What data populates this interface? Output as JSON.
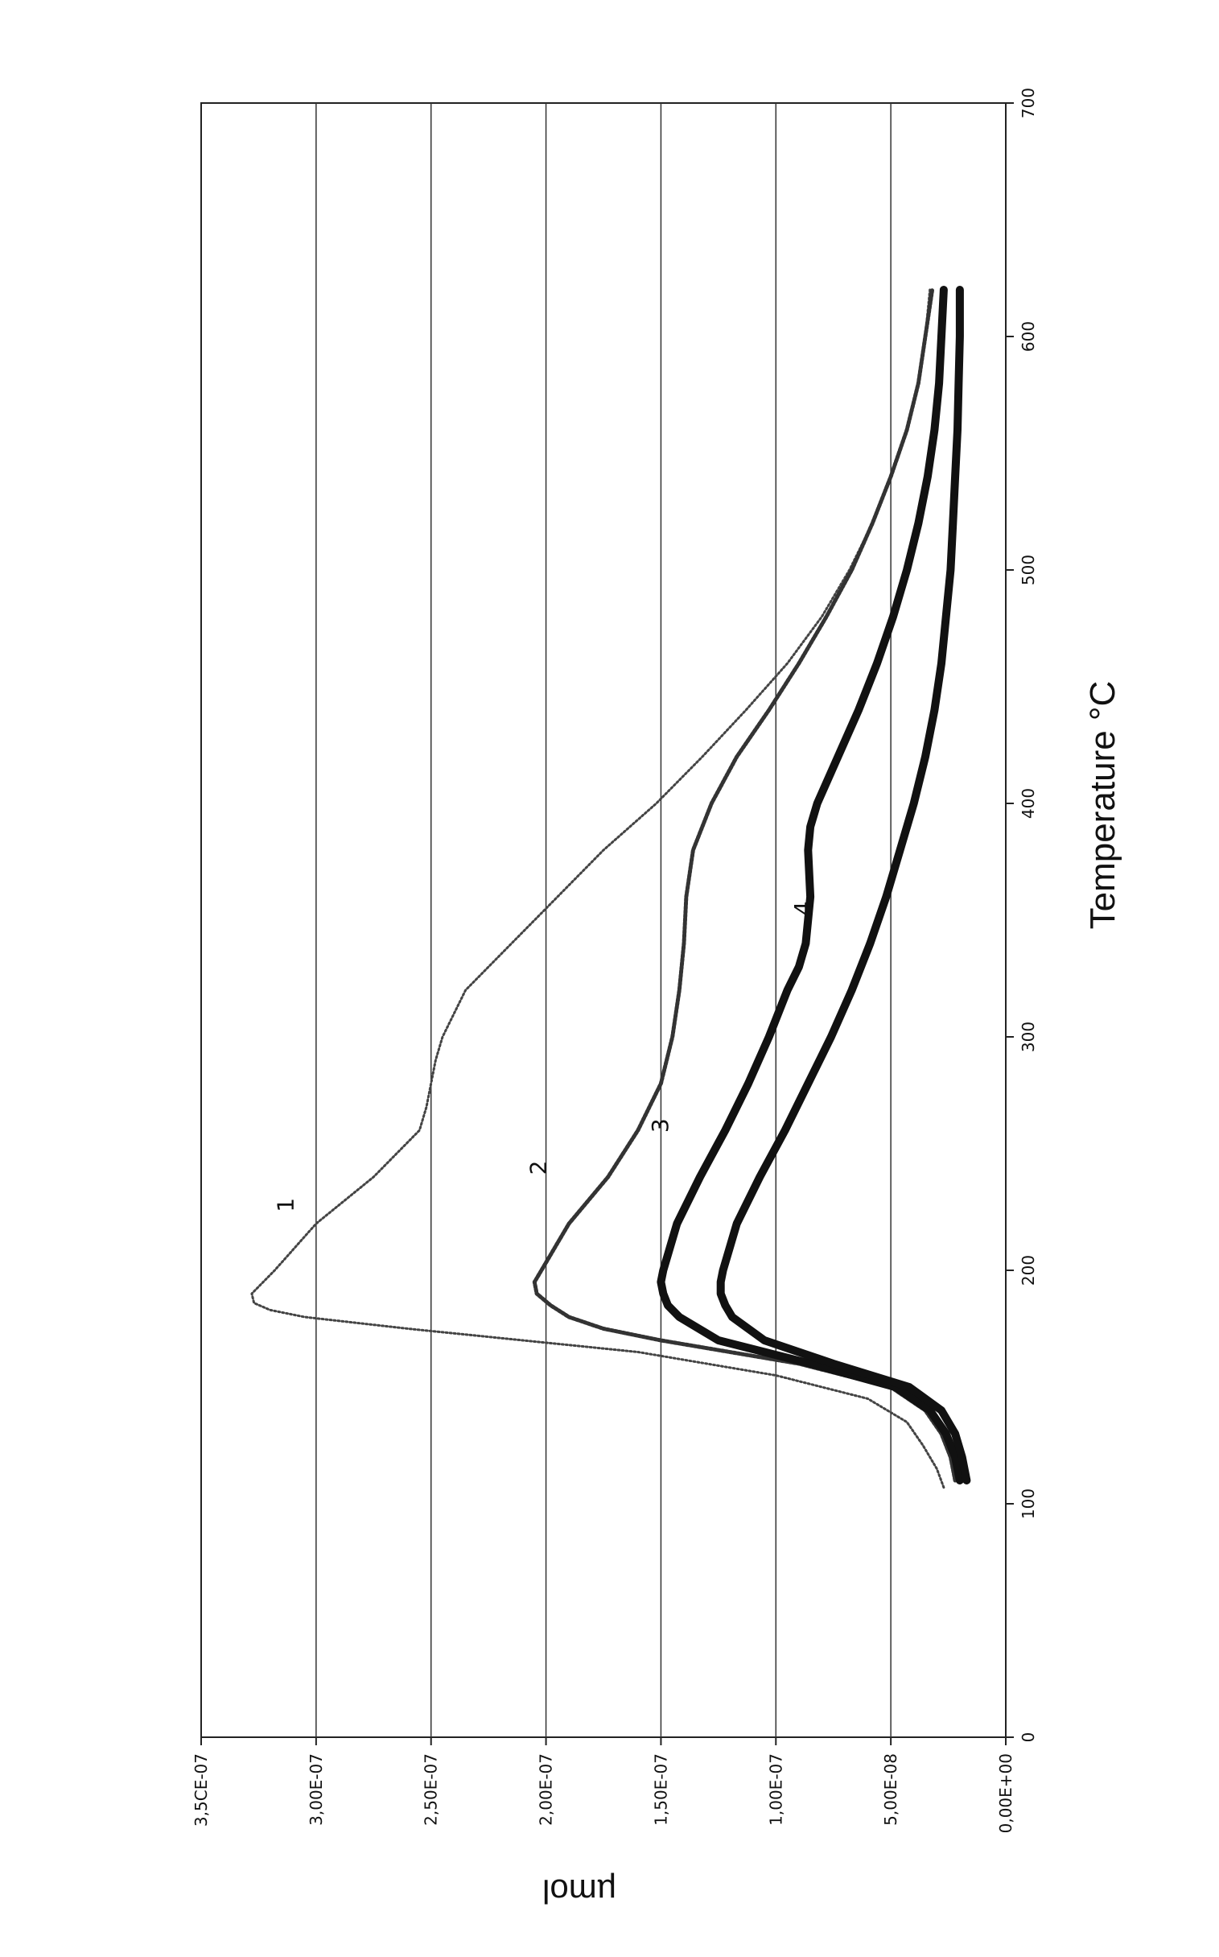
{
  "chart_data": {
    "type": "line",
    "orientation": "rotated-90-clockwise",
    "xlabel": "Temperature  °C",
    "ylabel": "µmol",
    "xlim": [
      0,
      700
    ],
    "ylim": [
      0,
      3.5e-07
    ],
    "x_ticks": [
      "0",
      "100",
      "200",
      "300",
      "400",
      "500",
      "600",
      "700"
    ],
    "y_ticks": [
      "0,00E+00",
      "5,00E-08",
      "1,00E-07",
      "1,50E-07",
      "2,00E-07",
      "2,50E-07",
      "3,00E-07",
      "3,5CE-07"
    ],
    "grid": "horizontal",
    "legend": "none",
    "series": [
      {
        "name": "1",
        "style": "dotted-thin",
        "x": [
          107,
          115,
          125,
          135,
          145,
          155,
          165,
          170,
          175,
          180,
          183,
          186,
          190,
          200,
          220,
          240,
          260,
          270,
          290,
          300,
          320,
          340,
          360,
          380,
          400,
          420,
          440,
          460,
          480,
          500,
          520,
          540,
          560,
          580,
          600,
          620
        ],
        "y": [
          2.7e-08,
          3e-08,
          3.6e-08,
          4.3e-08,
          6e-08,
          1e-07,
          1.6e-07,
          2.1e-07,
          2.6e-07,
          3.05e-07,
          3.2e-07,
          3.27e-07,
          3.28e-07,
          3.18e-07,
          3e-07,
          2.75e-07,
          2.55e-07,
          2.52e-07,
          2.48e-07,
          2.45e-07,
          2.35e-07,
          2.15e-07,
          1.95e-07,
          1.75e-07,
          1.52e-07,
          1.32e-07,
          1.13e-07,
          9.5e-08,
          8e-08,
          6.8e-08,
          5.8e-08,
          5e-08,
          4.3e-08,
          3.8e-08,
          3.5e-08,
          3.3e-08
        ]
      },
      {
        "name": "2",
        "style": "dotted-medium",
        "x": [
          110,
          120,
          130,
          140,
          150,
          160,
          170,
          175,
          180,
          185,
          190,
          195,
          200,
          220,
          240,
          260,
          280,
          300,
          320,
          340,
          360,
          380,
          400,
          420,
          440,
          460,
          480,
          500,
          520,
          540,
          560,
          580,
          600,
          620
        ],
        "y": [
          2.2e-08,
          2.4e-08,
          2.8e-08,
          3.5e-08,
          5e-08,
          9e-08,
          1.5e-07,
          1.75e-07,
          1.9e-07,
          1.98e-07,
          2.04e-07,
          2.05e-07,
          2.02e-07,
          1.9e-07,
          1.73e-07,
          1.6e-07,
          1.5e-07,
          1.45e-07,
          1.42e-07,
          1.4e-07,
          1.39e-07,
          1.36e-07,
          1.28e-07,
          1.17e-07,
          1.03e-07,
          9e-08,
          7.8e-08,
          6.7e-08,
          5.8e-08,
          5e-08,
          4.3e-08,
          3.8e-08,
          3.5e-08,
          3.2e-08
        ]
      },
      {
        "name": "3",
        "style": "solid-thick",
        "x": [
          110,
          120,
          130,
          140,
          150,
          160,
          170,
          180,
          185,
          190,
          195,
          200,
          220,
          240,
          260,
          280,
          300,
          320,
          330,
          340,
          360,
          380,
          390,
          400,
          420,
          440,
          460,
          480,
          500,
          520,
          540,
          560,
          580,
          600,
          620
        ],
        "y": [
          2e-08,
          2.2e-08,
          2.6e-08,
          3.3e-08,
          4.8e-08,
          8.5e-08,
          1.25e-07,
          1.42e-07,
          1.47e-07,
          1.49e-07,
          1.5e-07,
          1.49e-07,
          1.43e-07,
          1.33e-07,
          1.22e-07,
          1.12e-07,
          1.03e-07,
          9.5e-08,
          9e-08,
          8.7e-08,
          8.5e-08,
          8.6e-08,
          8.5e-08,
          8.2e-08,
          7.3e-08,
          6.4e-08,
          5.6e-08,
          4.9e-08,
          4.3e-08,
          3.8e-08,
          3.4e-08,
          3.1e-08,
          2.9e-08,
          2.8e-08,
          2.7e-08
        ]
      },
      {
        "name": "4",
        "style": "solid-thick",
        "x": [
          110,
          120,
          130,
          140,
          150,
          160,
          170,
          180,
          185,
          190,
          195,
          200,
          220,
          240,
          260,
          280,
          300,
          320,
          340,
          360,
          380,
          400,
          420,
          440,
          460,
          480,
          500,
          520,
          540,
          560,
          580,
          600,
          620
        ],
        "y": [
          1.7e-08,
          1.9e-08,
          2.2e-08,
          2.8e-08,
          4.2e-08,
          7.5e-08,
          1.05e-07,
          1.19e-07,
          1.22e-07,
          1.24e-07,
          1.24e-07,
          1.23e-07,
          1.17e-07,
          1.07e-07,
          9.6e-08,
          8.6e-08,
          7.6e-08,
          6.7e-08,
          5.9e-08,
          5.2e-08,
          4.6e-08,
          4e-08,
          3.5e-08,
          3.1e-08,
          2.8e-08,
          2.6e-08,
          2.4e-08,
          2.3e-08,
          2.2e-08,
          2.1e-08,
          2.05e-08,
          2e-08,
          2e-08
        ]
      }
    ],
    "series_labels": [
      {
        "text": "1",
        "x": 228,
        "y": 3.1e-07
      },
      {
        "text": "2",
        "x": 244,
        "y": 2e-07
      },
      {
        "text": "3",
        "x": 262,
        "y": 1.47e-07
      },
      {
        "text": "4",
        "x": 355,
        "y": 8.5e-08
      }
    ]
  }
}
